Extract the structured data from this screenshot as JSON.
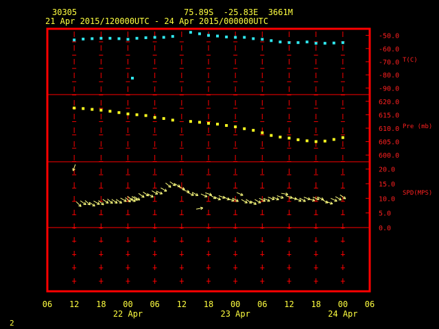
{
  "header": {
    "station": "30305",
    "location": "75.89S  -25.83E  3661M",
    "period": "21 Apr 2015/120000UTC - 24 Apr 2015/000000UTC"
  },
  "page_number": "2",
  "colors": {
    "background": "#000000",
    "frame": "#ff0000",
    "label_red": "#ff2020",
    "text_yellow": "#ffff40",
    "temperature": "#30e8f0",
    "pressure": "#ffff20",
    "wind": "#ffff80"
  },
  "chart_data": {
    "type": "scatter",
    "x_tick_labels": [
      "06",
      "12",
      "18",
      "00",
      "06",
      "12",
      "18",
      "00",
      "06",
      "12",
      "18",
      "00",
      "06"
    ],
    "date_labels": [
      {
        "label": "22 Apr",
        "at_hour": 24
      },
      {
        "label": "23 Apr",
        "at_hour": 48
      },
      {
        "label": "24 Apr",
        "at_hour": 72
      }
    ],
    "xlim_hours_since_21apr00": [
      6,
      78
    ],
    "panels": [
      {
        "name": "temperature",
        "label": "T(C)",
        "ticks": [
          "-50.0",
          "-60.0",
          "-70.0",
          "-80.0",
          "-90.0"
        ],
        "tick_values": [
          -50,
          -60,
          -70,
          -80,
          -90
        ],
        "ylim": [
          -95,
          -45
        ],
        "series": [
          {
            "x": [
              12,
              14,
              16,
              18,
              20,
              22,
              24,
              26,
              28,
              30,
              32,
              34,
              38,
              40,
              42,
              44,
              46,
              48,
              50,
              52,
              54,
              56,
              58,
              60,
              62,
              64,
              66,
              68,
              70,
              72
            ],
            "y": [
              -53.5,
              -52.8,
              -52.5,
              -52.2,
              -52.2,
              -52.5,
              -53,
              -52.2,
              -51.8,
              -51.5,
              -51.5,
              -50.8,
              -47.7,
              -48.8,
              -50,
              -50.5,
              -51.2,
              -51.5,
              -51.5,
              -52.5,
              -53,
              -54,
              -55,
              -55.5,
              -55.5,
              -55,
              -56,
              -56,
              -55.8,
              -55.5
            ]
          }
        ],
        "outliers": [
          {
            "x": 25,
            "y": -82.5
          }
        ]
      },
      {
        "name": "pressure",
        "label": "Pre (mb)",
        "ticks": [
          "620.0",
          "615.0",
          "610.0",
          "605.0",
          "600.0"
        ],
        "tick_values": [
          620,
          615,
          610,
          605,
          600
        ],
        "ylim": [
          597.5,
          622.5
        ],
        "series": [
          {
            "x": [
              12,
              14,
              16,
              18,
              20,
              22,
              24,
              26,
              28,
              30,
              32,
              34,
              38,
              40,
              42,
              44,
              46,
              48,
              50,
              52,
              54,
              56,
              58,
              60,
              62,
              64,
              66,
              68,
              70,
              72
            ],
            "y": [
              617.5,
              617.3,
              617,
              616.7,
              616.3,
              615.8,
              615.3,
              615,
              614.7,
              614,
              613.6,
              613,
              612.5,
              612.2,
              611.8,
              611.5,
              611,
              610.5,
              609.8,
              609.2,
              608.3,
              607.3,
              606.7,
              606.3,
              605.7,
              605.3,
              605,
              605.2,
              605.8,
              606.5
            ]
          }
        ]
      },
      {
        "name": "wind",
        "label": "SPD(MPS)",
        "ticks": [
          "20.0",
          "15.0",
          "10.0",
          "5.0",
          "0.0"
        ],
        "tick_values": [
          20,
          15,
          10,
          5,
          0
        ],
        "ylim": [
          0,
          22.5
        ],
        "series": [
          {
            "x": [
              12,
              13,
              14,
              15,
              16,
              17,
              18,
              19,
              20,
              21,
              22,
              23,
              24,
              24.5,
              25,
              25.5,
              26,
              27,
              28,
              29,
              30,
              31,
              32,
              33,
              34,
              35,
              36,
              37,
              38,
              39,
              40,
              41,
              42,
              43,
              44,
              45,
              46,
              47,
              48,
              49,
              50,
              51,
              52,
              53,
              54,
              55,
              56,
              57,
              58,
              59,
              60,
              61,
              62,
              63,
              64,
              65,
              66,
              67,
              68,
              69,
              70,
              71,
              72
            ],
            "y": [
              20.5,
              8,
              8.5,
              8.5,
              8,
              8.5,
              8.5,
              9,
              9,
              9,
              9,
              9.5,
              9.5,
              10,
              9.5,
              10,
              10,
              11,
              11.5,
              11,
              12,
              12,
              13,
              14.5,
              15,
              14.5,
              13.5,
              12.5,
              11.5,
              11.5,
              6.5,
              11,
              11.5,
              10.5,
              10,
              10.5,
              10,
              9.5,
              9.5,
              11.5,
              9,
              9,
              8.5,
              9,
              9.5,
              9.5,
              10,
              10,
              10.5,
              11.5,
              10.5,
              10,
              9.5,
              9.5,
              10,
              9.5,
              10,
              10,
              9,
              8.5,
              9.5,
              10,
              10.5
            ],
            "direction_deg": [
              200,
              135,
              125,
              130,
              125,
              120,
              130,
              125,
              130,
              125,
              125,
              120,
              130,
              125,
              120,
              125,
              120,
              125,
              125,
              120,
              120,
              115,
              120,
              130,
              125,
              120,
              115,
              110,
              115,
              120,
              80,
              115,
              110,
              120,
              115,
              110,
              115,
              110,
              120,
              115,
              120,
              125,
              120,
              120,
              115,
              115,
              110,
              115,
              110,
              100,
              110,
              105,
              115,
              120,
              110,
              105,
              110,
              115,
              120,
              110,
              115,
              120,
              125
            ]
          }
        ]
      }
    ]
  }
}
